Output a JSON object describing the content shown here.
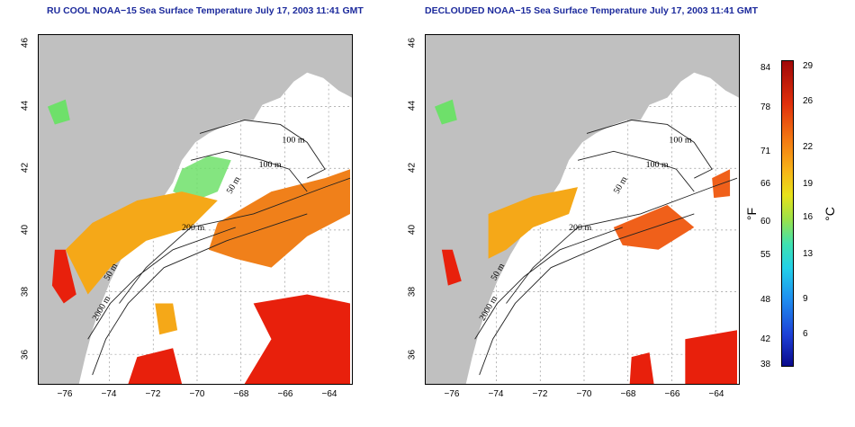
{
  "left_panel": {
    "title": "RU COOL NOAA−15 Sea Surface Temperature July 17, 2003 11:41 GMT",
    "contour_labels": [
      "100 m",
      "100 m",
      "50 m",
      "200 m",
      "50 m",
      "2000 m"
    ]
  },
  "right_panel": {
    "title": "DECLOUDED NOAA−15 Sea Surface Temperature July 17, 2003 11:41 GMT",
    "contour_labels": [
      "100 m",
      "100 m",
      "50 m",
      "200 m",
      "50 m",
      "2000 m"
    ]
  },
  "axes": {
    "x_ticks": [
      "−76",
      "−74",
      "−72",
      "−70",
      "−68",
      "−66",
      "−64"
    ],
    "y_ticks": [
      "46",
      "44",
      "42",
      "40",
      "38",
      "36"
    ]
  },
  "colorbar": {
    "fahrenheit_labels": [
      "84",
      "78",
      "71",
      "66",
      "60",
      "55",
      "48",
      "42",
      "38"
    ],
    "celsius_labels": [
      "29",
      "26",
      "22",
      "19",
      "16",
      "13",
      "9",
      "6"
    ],
    "unit_f": "°F",
    "unit_c": "°C"
  },
  "colors": {
    "land": "#c0c0c0",
    "title": "#1c2a9c",
    "warm": "#e8200c",
    "mid": "#f5a818",
    "cool": "#6ee06a"
  }
}
